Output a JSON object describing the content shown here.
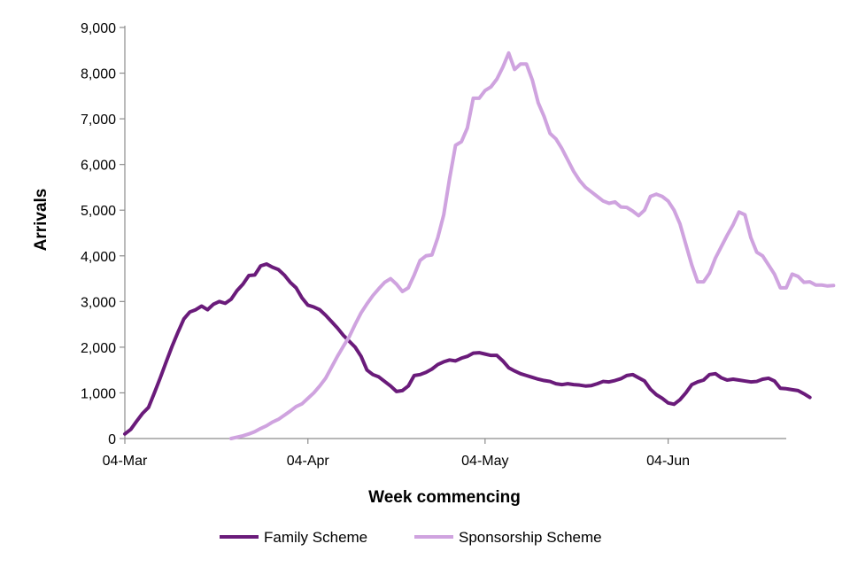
{
  "chart_data": {
    "type": "line",
    "title": "",
    "xlabel": "Week commencing",
    "ylabel": "Arrivals",
    "x_ticks": [
      "04-Mar",
      "04-Apr",
      "04-May",
      "04-Jun"
    ],
    "x_tick_day_offsets": [
      0,
      31,
      61,
      92
    ],
    "x_start": "04-Mar",
    "x_end": "23-Jun",
    "x_step_days": 1,
    "ylim": [
      0,
      9000
    ],
    "y_ticks": [
      "0",
      "1,000",
      "2,000",
      "3,000",
      "4,000",
      "5,000",
      "6,000",
      "7,000",
      "8,000",
      "9,000"
    ],
    "grid": false,
    "legend_position": "bottom",
    "series": [
      {
        "name": "Family Scheme",
        "color": "#6a1b7a",
        "values": [
          100,
          200,
          380,
          550,
          680,
          1000,
          1330,
          1680,
          2020,
          2330,
          2620,
          2770,
          2820,
          2900,
          2820,
          2940,
          3000,
          2960,
          3050,
          3240,
          3380,
          3570,
          3580,
          3780,
          3820,
          3750,
          3700,
          3580,
          3420,
          3300,
          3080,
          2920,
          2880,
          2820,
          2700,
          2560,
          2420,
          2260,
          2130,
          2000,
          1800,
          1500,
          1400,
          1350,
          1250,
          1150,
          1030,
          1050,
          1150,
          1380,
          1400,
          1450,
          1520,
          1620,
          1680,
          1720,
          1700,
          1760,
          1800,
          1870,
          1880,
          1850,
          1820,
          1820,
          1700,
          1550,
          1480,
          1420,
          1380,
          1340,
          1300,
          1270,
          1250,
          1200,
          1180,
          1200,
          1180,
          1170,
          1150,
          1160,
          1200,
          1250,
          1240,
          1270,
          1310,
          1380,
          1400,
          1330,
          1260,
          1080,
          960,
          880,
          780,
          750,
          850,
          1000,
          1180,
          1240,
          1280,
          1400,
          1420,
          1330,
          1280,
          1300,
          1280,
          1260,
          1240,
          1250,
          1300,
          1320,
          1260,
          1100,
          1090,
          1070,
          1050,
          980,
          900
        ]
      },
      {
        "name": "Sponsorship Scheme",
        "color": "#cfa3df",
        "start_index": 18,
        "values": [
          0,
          30,
          60,
          100,
          150,
          220,
          280,
          360,
          420,
          510,
          600,
          700,
          760,
          880,
          1000,
          1150,
          1320,
          1560,
          1800,
          2020,
          2230,
          2500,
          2750,
          2950,
          3130,
          3280,
          3420,
          3500,
          3380,
          3220,
          3300,
          3580,
          3900,
          4000,
          4020,
          4400,
          4900,
          5700,
          6420,
          6500,
          6800,
          7450,
          7450,
          7620,
          7700,
          7870,
          8130,
          8440,
          8080,
          8200,
          8200,
          7850,
          7350,
          7050,
          6680,
          6560,
          6350,
          6100,
          5850,
          5650,
          5500,
          5400,
          5300,
          5200,
          5150,
          5180,
          5070,
          5060,
          4980,
          4880,
          5000,
          5300,
          5350,
          5300,
          5200,
          5000,
          4700,
          4250,
          3800,
          3430,
          3430,
          3620,
          3950,
          4200,
          4450,
          4680,
          4960,
          4900,
          4400,
          4080,
          4000,
          3800,
          3600,
          3300,
          3300,
          3600,
          3550,
          3420,
          3430,
          3360,
          3360,
          3340,
          3350
        ]
      }
    ]
  }
}
